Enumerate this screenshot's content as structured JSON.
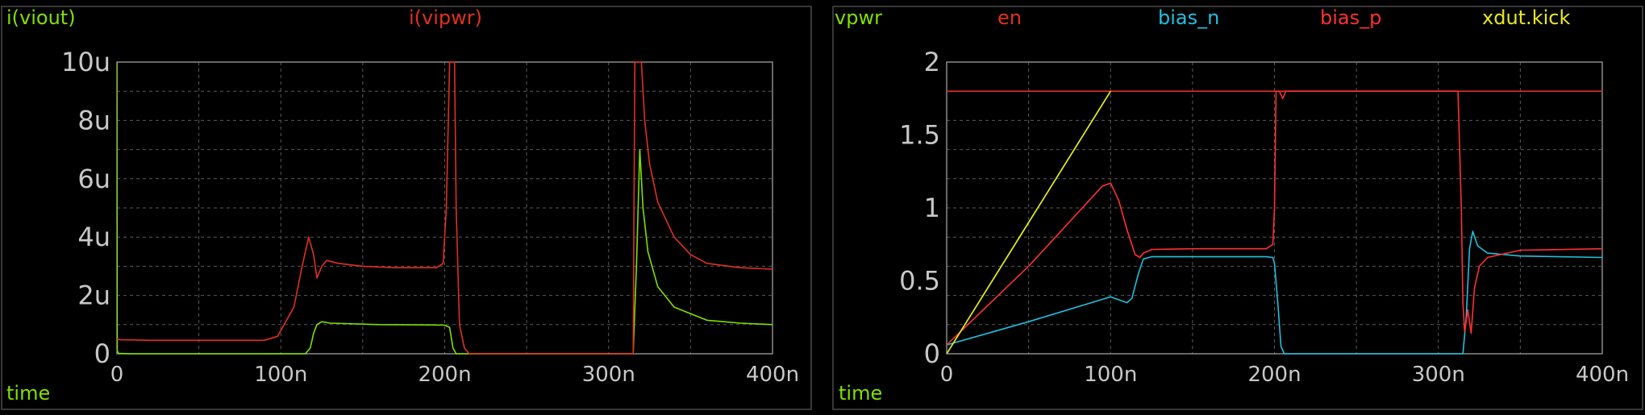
{
  "chart_data": [
    {
      "type": "line",
      "xlabel": "time",
      "xlim": [
        0,
        4e-07
      ],
      "ylim": [
        0,
        1e-05
      ],
      "x_ticks": [
        "0",
        "100n",
        "200n",
        "300n",
        "400n"
      ],
      "y_ticks": [
        "0",
        "2u",
        "4u",
        "6u",
        "8u",
        "10u"
      ],
      "grid": true,
      "legend_position": "top",
      "series": [
        {
          "name": "i(viout)",
          "color": "#80e000",
          "points": [
            [
              0,
              1e-05
            ],
            [
              2e-10,
              1e-07
            ],
            [
              1e-09,
              1e-08
            ],
            [
              1e-08,
              0
            ],
            [
              5e-08,
              0
            ],
            [
              1e-07,
              0
            ],
            [
              1.15e-07,
              0
            ],
            [
              1.18e-07,
              2e-07
            ],
            [
              1.2e-07,
              7e-07
            ],
            [
              1.22e-07,
              1e-06
            ],
            [
              1.25e-07,
              1.1e-06
            ],
            [
              1.3e-07,
              1.05e-06
            ],
            [
              1.6e-07,
              1e-06
            ],
            [
              1.9e-07,
              9.9e-07
            ],
            [
              2e-07,
              9.8e-07
            ],
            [
              2.03e-07,
              9e-07
            ],
            [
              2.05e-07,
              2e-07
            ],
            [
              2.07e-07,
              0
            ],
            [
              3.1e-07,
              0
            ],
            [
              3.15e-07,
              0
            ],
            [
              3.17e-07,
              3e-06
            ],
            [
              3.19e-07,
              7e-06
            ],
            [
              3.21e-07,
              5e-06
            ],
            [
              3.24e-07,
              3.5e-06
            ],
            [
              3.3e-07,
              2.3e-06
            ],
            [
              3.4e-07,
              1.6e-06
            ],
            [
              3.6e-07,
              1.15e-06
            ],
            [
              3.8e-07,
              1.05e-06
            ],
            [
              4e-07,
              1e-06
            ]
          ]
        },
        {
          "name": "i(vipwr)",
          "color": "#e03020",
          "points": [
            [
              0,
              5e-07
            ],
            [
              2e-09,
              4.8e-07
            ],
            [
              2e-08,
              4.6e-07
            ],
            [
              5e-08,
              4.6e-07
            ],
            [
              9e-08,
              4.6e-07
            ],
            [
              9.8e-08,
              6e-07
            ],
            [
              1.02e-07,
              1e-06
            ],
            [
              1.08e-07,
              1.6e-06
            ],
            [
              1.13e-07,
              3e-06
            ],
            [
              1.17e-07,
              4e-06
            ],
            [
              1.2e-07,
              3.4e-06
            ],
            [
              1.22e-07,
              2.6e-06
            ],
            [
              1.25e-07,
              3e-06
            ],
            [
              1.28e-07,
              3.2e-06
            ],
            [
              1.35e-07,
              3.1e-06
            ],
            [
              1.5e-07,
              3e-06
            ],
            [
              1.7e-07,
              2.95e-06
            ],
            [
              1.95e-07,
              2.95e-06
            ],
            [
              1.99e-07,
              3.1e-06
            ],
            [
              2.01e-07,
              5e-06
            ],
            [
              2.03e-07,
              1e-05
            ],
            [
              2.06e-07,
              1e-05
            ],
            [
              2.07e-07,
              5e-06
            ],
            [
              2.09e-07,
              1e-06
            ],
            [
              2.12e-07,
              2e-07
            ],
            [
              2.15e-07,
              0
            ],
            [
              3.1e-07,
              0
            ],
            [
              3.15e-07,
              0
            ],
            [
              3.16e-07,
              1e-05
            ],
            [
              3.2e-07,
              1e-05
            ],
            [
              3.22e-07,
              8e-06
            ],
            [
              3.25e-07,
              6.5e-06
            ],
            [
              3.3e-07,
              5.2e-06
            ],
            [
              3.4e-07,
              4e-06
            ],
            [
              3.5e-07,
              3.4e-06
            ],
            [
              3.6e-07,
              3.1e-06
            ],
            [
              3.8e-07,
              2.95e-06
            ],
            [
              4e-07,
              2.9e-06
            ]
          ]
        }
      ]
    },
    {
      "type": "line",
      "xlabel": "time",
      "xlim": [
        0,
        4e-07
      ],
      "ylim": [
        0,
        2
      ],
      "x_ticks": [
        "0",
        "100n",
        "200n",
        "300n",
        "400n"
      ],
      "y_ticks": [
        "0",
        "0.5",
        "1",
        "1.5",
        "2"
      ],
      "grid": true,
      "legend_position": "top",
      "series": [
        {
          "name": "vpwr",
          "color": "#80e000",
          "points": [
            [
              0,
              0
            ],
            [
              1e-07,
              1.8
            ]
          ]
        },
        {
          "name": "en",
          "color": "#e03020",
          "points": [
            [
              0,
              1.8
            ],
            [
              4e-07,
              1.8
            ]
          ]
        },
        {
          "name": "bias_n",
          "color": "#20c0e0",
          "points": [
            [
              0,
              0.06
            ],
            [
              5e-08,
              0.22
            ],
            [
              1e-07,
              0.39
            ],
            [
              1.05e-07,
              0.37
            ],
            [
              1.1e-07,
              0.35
            ],
            [
              1.13e-07,
              0.38
            ],
            [
              1.17e-07,
              0.55
            ],
            [
              1.2e-07,
              0.65
            ],
            [
              1.25e-07,
              0.665
            ],
            [
              1.5e-07,
              0.665
            ],
            [
              1.95e-07,
              0.665
            ],
            [
              1.99e-07,
              0.66
            ],
            [
              2e-07,
              0.62
            ],
            [
              2.02e-07,
              0.35
            ],
            [
              2.04e-07,
              0.05
            ],
            [
              2.06e-07,
              0
            ],
            [
              3.1e-07,
              0
            ],
            [
              3.15e-07,
              0
            ],
            [
              3.17e-07,
              0.25
            ],
            [
              3.19e-07,
              0.72
            ],
            [
              3.21e-07,
              0.84
            ],
            [
              3.24e-07,
              0.74
            ],
            [
              3.3e-07,
              0.69
            ],
            [
              3.5e-07,
              0.67
            ],
            [
              4e-07,
              0.66
            ]
          ]
        },
        {
          "name": "bias_p",
          "color": "#ff3030",
          "points": [
            [
              0,
              0.06
            ],
            [
              5e-08,
              0.6
            ],
            [
              9.5e-08,
              1.15
            ],
            [
              1e-07,
              1.17
            ],
            [
              1.05e-07,
              1.05
            ],
            [
              1.1e-07,
              0.85
            ],
            [
              1.15e-07,
              0.68
            ],
            [
              1.18e-07,
              0.66
            ],
            [
              1.2e-07,
              0.69
            ],
            [
              1.25e-07,
              0.715
            ],
            [
              1.5e-07,
              0.72
            ],
            [
              1.95e-07,
              0.72
            ],
            [
              1.99e-07,
              0.75
            ],
            [
              2e-07,
              1.0
            ],
            [
              2.01e-07,
              1.8
            ],
            [
              2.03e-07,
              1.8
            ],
            [
              2.05e-07,
              1.75
            ],
            [
              2.07e-07,
              1.8
            ],
            [
              3.1e-07,
              1.8
            ],
            [
              3.12e-07,
              1.8
            ],
            [
              3.14e-07,
              1.0
            ],
            [
              3.15e-07,
              0.35
            ],
            [
              3.16e-07,
              0.15
            ],
            [
              3.18e-07,
              0.3
            ],
            [
              3.2e-07,
              0.14
            ],
            [
              3.22e-07,
              0.45
            ],
            [
              3.25e-07,
              0.6
            ],
            [
              3.3e-07,
              0.66
            ],
            [
              3.5e-07,
              0.71
            ],
            [
              4e-07,
              0.72
            ]
          ]
        },
        {
          "name": "xdut.kick",
          "color": "#e8e820",
          "points": [
            [
              0,
              0
            ],
            [
              1e-07,
              1.8
            ]
          ]
        }
      ]
    }
  ]
}
